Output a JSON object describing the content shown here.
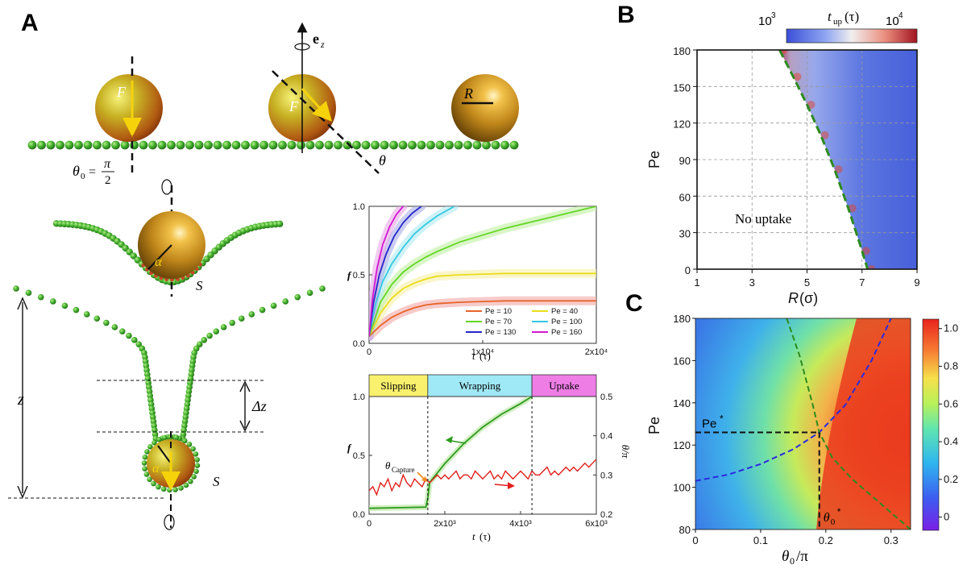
{
  "panel_labels": {
    "a": "A",
    "b": "B",
    "c": "C"
  },
  "schematic": {
    "labels": {
      "force_1": "F",
      "force_2": "F",
      "radius": "R",
      "theta": "θ",
      "theta0_lhs": "θ",
      "theta0_sub": "0",
      "theta0_eq": "=",
      "theta0_num": "π",
      "theta0_den": "2",
      "ez_main": "e",
      "ez_sub": "z",
      "alpha_1": "α",
      "alpha_2": "α",
      "s_1": "S",
      "s_2": "S",
      "z": "z",
      "dz": "Δz"
    },
    "colors": {
      "bead": "#3aa82a",
      "particle": "#c98a1a",
      "arrow": "#f5d20a"
    }
  },
  "chart_data": [
    {
      "id": "A-top",
      "type": "line",
      "xlabel_var": "t",
      "xlabel_unit": "(τ)",
      "ylabel": "f",
      "xlim": [
        0,
        20000
      ],
      "ylim": [
        0,
        1
      ],
      "xticks": [
        {
          "v": 0,
          "label": "0"
        },
        {
          "v": 10000,
          "label": "1x10⁴"
        },
        {
          "v": 20000,
          "label": "2x10⁴"
        }
      ],
      "yticks": [
        {
          "v": 0,
          "label": "0.0"
        },
        {
          "v": 0.5,
          "label": "0.5"
        },
        {
          "v": 1,
          "label": "1.0"
        }
      ],
      "series": [
        {
          "name": "Pe = 10",
          "color": "#e8642a",
          "band": "#f2a9a6",
          "x": [
            0,
            1000,
            2000,
            3000,
            4000,
            5000,
            6000,
            8000,
            10000,
            12000,
            16000,
            20000
          ],
          "y": [
            0.05,
            0.13,
            0.19,
            0.23,
            0.26,
            0.28,
            0.29,
            0.3,
            0.305,
            0.31,
            0.31,
            0.31
          ]
        },
        {
          "name": "Pe = 40",
          "color": "#eadc1c",
          "band": "#f6f0a6",
          "x": [
            0,
            1000,
            2000,
            3000,
            4000,
            5000,
            6000,
            8000,
            10000,
            12000,
            16000,
            20000
          ],
          "y": [
            0.05,
            0.22,
            0.33,
            0.4,
            0.44,
            0.47,
            0.49,
            0.5,
            0.505,
            0.51,
            0.51,
            0.51
          ]
        },
        {
          "name": "Pe = 70",
          "color": "#63d626",
          "band": "#bff0a2",
          "x": [
            0,
            1000,
            2000,
            3000,
            4000,
            5000,
            6000,
            8000,
            10000,
            12000,
            14000,
            16000,
            18000,
            20000
          ],
          "y": [
            0.05,
            0.3,
            0.43,
            0.52,
            0.58,
            0.63,
            0.67,
            0.74,
            0.79,
            0.84,
            0.88,
            0.92,
            0.96,
            1.0
          ]
        },
        {
          "name": "Pe = 100",
          "color": "#34c9e2",
          "band": "#aee9f2",
          "x": [
            0,
            600,
            1200,
            2000,
            3000,
            4000,
            5000,
            6000,
            7500
          ],
          "y": [
            0.05,
            0.3,
            0.45,
            0.58,
            0.7,
            0.8,
            0.87,
            0.93,
            1.0
          ]
        },
        {
          "name": "Pe = 130",
          "color": "#2326c8",
          "band": "#a9aee8",
          "x": [
            0,
            400,
            900,
            1500,
            2200,
            3000,
            3800,
            4600
          ],
          "y": [
            0.05,
            0.3,
            0.5,
            0.65,
            0.78,
            0.88,
            0.95,
            1.0
          ]
        },
        {
          "name": "Pe = 160",
          "color": "#d417d2",
          "band": "#eaa7e8",
          "x": [
            0,
            300,
            700,
            1200,
            1800,
            2400,
            3000
          ],
          "y": [
            0.05,
            0.32,
            0.55,
            0.72,
            0.85,
            0.94,
            1.0
          ]
        }
      ]
    },
    {
      "id": "A-bottom",
      "type": "line",
      "xlabel_var": "t",
      "xlabel_unit": "(τ)",
      "ylabel": "f",
      "ylabel_right": "θ/π",
      "xlim": [
        0,
        6000
      ],
      "ylim": [
        0,
        1
      ],
      "ylim_right": [
        0.2,
        0.5
      ],
      "xticks": [
        {
          "v": 0,
          "label": "0"
        },
        {
          "v": 2000,
          "label": "2x10³"
        },
        {
          "v": 4000,
          "label": "4x10³"
        },
        {
          "v": 6000,
          "label": "6x10³"
        }
      ],
      "yticks": [
        {
          "v": 0,
          "label": "0.0"
        },
        {
          "v": 0.5,
          "label": "0.5"
        },
        {
          "v": 1,
          "label": "1.0"
        }
      ],
      "yticks_right": [
        {
          "v": 0.2,
          "label": "0.2"
        },
        {
          "v": 0.3,
          "label": "0.3"
        },
        {
          "v": 0.4,
          "label": "0.4"
        },
        {
          "v": 0.5,
          "label": "0.5"
        }
      ],
      "phases": [
        {
          "label": "Slipping",
          "start": 0,
          "end": 1550,
          "color": "#f9f06e"
        },
        {
          "label": "Wrapping",
          "start": 1550,
          "end": 4300,
          "color": "#9fe8f5"
        },
        {
          "label": "Uptake",
          "start": 4300,
          "end": 6000,
          "color": "#ee7de6"
        }
      ],
      "annotation": {
        "label": "θ",
        "sub": "Capture",
        "x": 1550,
        "y": 0.28
      },
      "series": [
        {
          "name": "f",
          "color": "#2e9a1e",
          "axis": "left",
          "x": [
            0,
            1500,
            1550,
            1600,
            2000,
            2500,
            3000,
            3500,
            4000,
            4300
          ],
          "y": [
            0.05,
            0.06,
            0.14,
            0.27,
            0.43,
            0.6,
            0.74,
            0.85,
            0.94,
            1.0
          ]
        },
        {
          "name": "θ/π",
          "color": "#e0201c",
          "axis": "right",
          "x": [
            0,
            100,
            200,
            300,
            400,
            500,
            600,
            700,
            800,
            900,
            1000,
            1100,
            1200,
            1300,
            1400,
            1500,
            1600,
            1700,
            1800,
            1900,
            2000,
            2100,
            2200,
            2300,
            2400,
            2500,
            2600,
            2700,
            2800,
            2900,
            3000,
            3100,
            3200,
            3300,
            3400,
            3500,
            3600,
            3700,
            3800,
            3900,
            4000,
            4100,
            4200,
            4300,
            4400,
            4500,
            4600,
            4700,
            4800,
            4900,
            5000,
            5100,
            5200,
            5300,
            5400,
            5500,
            5600,
            5700,
            5800,
            5900,
            6000
          ],
          "y": [
            0.26,
            0.27,
            0.25,
            0.28,
            0.27,
            0.29,
            0.26,
            0.28,
            0.27,
            0.3,
            0.28,
            0.27,
            0.29,
            0.28,
            0.27,
            0.29,
            0.28,
            0.29,
            0.3,
            0.29,
            0.3,
            0.29,
            0.3,
            0.31,
            0.29,
            0.3,
            0.3,
            0.29,
            0.31,
            0.3,
            0.29,
            0.3,
            0.31,
            0.29,
            0.3,
            0.29,
            0.31,
            0.3,
            0.29,
            0.3,
            0.31,
            0.3,
            0.29,
            0.31,
            0.3,
            0.3,
            0.31,
            0.32,
            0.3,
            0.31,
            0.3,
            0.31,
            0.32,
            0.31,
            0.32,
            0.31,
            0.32,
            0.33,
            0.32,
            0.33,
            0.34
          ]
        }
      ]
    },
    {
      "id": "B",
      "type": "heatmap",
      "xlabel_var": "R",
      "xlabel_unit": "(σ)",
      "ylabel": "Pe",
      "xlim": [
        1,
        9
      ],
      "ylim": [
        0,
        180
      ],
      "xticks": [
        {
          "v": 1,
          "label": "1"
        },
        {
          "v": 3,
          "label": "3"
        },
        {
          "v": 5,
          "label": "5"
        },
        {
          "v": 7,
          "label": "7"
        },
        {
          "v": 9,
          "label": "9"
        }
      ],
      "yticks": [
        {
          "v": 0,
          "label": "0"
        },
        {
          "v": 30,
          "label": "30"
        },
        {
          "v": 60,
          "label": "60"
        },
        {
          "v": 90,
          "label": "90"
        },
        {
          "v": 120,
          "label": "120"
        },
        {
          "v": 150,
          "label": "150"
        },
        {
          "v": 180,
          "label": "180"
        }
      ],
      "colorbar": {
        "title_var": "t",
        "title_sub": "up",
        "title_unit": "(τ)",
        "min_base": "10",
        "min_exp": "3",
        "max_base": "10",
        "max_exp": "4"
      },
      "region_label": "No uptake",
      "boundary": {
        "R": [
          4.0,
          4.5,
          5.0,
          5.5,
          6.0,
          6.5,
          7.0,
          7.2
        ],
        "Pe": [
          180,
          158,
          135,
          110,
          82,
          50,
          15,
          0
        ]
      }
    },
    {
      "id": "C",
      "type": "heatmap",
      "xlabel_var": "θ",
      "xlabel_sub": "0",
      "xlabel_den": "/π",
      "ylabel": "Pe",
      "xlim": [
        0,
        0.33
      ],
      "ylim": [
        80,
        180
      ],
      "xticks": [
        {
          "v": 0,
          "label": "0"
        },
        {
          "v": 0.1,
          "label": "0.1"
        },
        {
          "v": 0.2,
          "label": "0.2"
        },
        {
          "v": 0.3,
          "label": "0.3"
        }
      ],
      "yticks": [
        {
          "v": 80,
          "label": "80"
        },
        {
          "v": 100,
          "label": "100"
        },
        {
          "v": 120,
          "label": "120"
        },
        {
          "v": 140,
          "label": "140"
        },
        {
          "v": 160,
          "label": "160"
        },
        {
          "v": 180,
          "label": "180"
        }
      ],
      "colorbar": {
        "ticks": [
          {
            "v": 0,
            "label": "0"
          },
          {
            "v": 0.2,
            "label": "0.2"
          },
          {
            "v": 0.4,
            "label": "0.4"
          },
          {
            "v": 0.6,
            "label": "0.6"
          },
          {
            "v": 0.8,
            "label": "0.8"
          },
          {
            "v": 1.0,
            "label": "1.0"
          }
        ]
      },
      "blue_curve": {
        "x": [
          0,
          0.05,
          0.1,
          0.15,
          0.19,
          0.23,
          0.27,
          0.3
        ],
        "y": [
          103,
          106,
          111,
          118,
          126,
          139,
          160,
          180
        ]
      },
      "green_curve": {
        "x": [
          0.14,
          0.16,
          0.18,
          0.19,
          0.21,
          0.24,
          0.27,
          0.3,
          0.33
        ],
        "y": [
          180,
          162,
          139,
          126,
          114,
          104,
          96,
          88,
          80
        ]
      },
      "crit_point": {
        "x": 0.19,
        "y": 126,
        "pe_label": "Pe",
        "theta_label": "θ",
        "theta_sub": "0",
        "star": "*"
      }
    }
  ]
}
